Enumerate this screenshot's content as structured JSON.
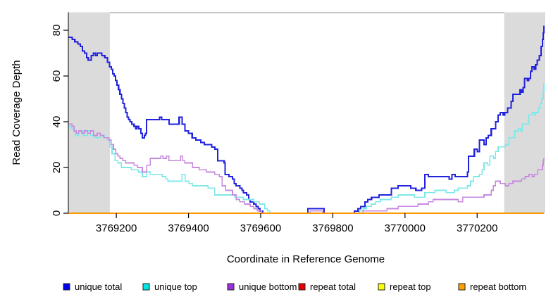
{
  "page": {
    "background": "#ffffff"
  },
  "chart_data": {
    "type": "line",
    "step": true,
    "title": "",
    "xlabel": "Coordinate in Reference Genome",
    "ylabel": "Read Coverage Depth",
    "xlim": [
      3769067,
      3770385
    ],
    "ylim": [
      0,
      87.7
    ],
    "xticks": [
      3769200,
      3769400,
      3769600,
      3769800,
      3770000,
      3770200
    ],
    "yticks": [
      0,
      20,
      40,
      60,
      80
    ],
    "grid": false,
    "legend_position": "bottom",
    "shaded_regions": [
      {
        "x0": 3769067,
        "x1": 3769182
      },
      {
        "x0": 3770275,
        "x1": 3770385
      }
    ],
    "colors": {
      "shade": "#dbdbdb",
      "plot_border": "#8c8c8c",
      "axis": "#000000",
      "text": "#000000",
      "background": "#ffffff"
    },
    "series": [
      {
        "name": "unique total",
        "line_color": "#2222dd",
        "swatch_color": "#0000ee",
        "width": 2.1,
        "points": [
          [
            3769067,
            77
          ],
          [
            3769078,
            76
          ],
          [
            3769085,
            75
          ],
          [
            3769093,
            74
          ],
          [
            3769100,
            73
          ],
          [
            3769106,
            71
          ],
          [
            3769112,
            70
          ],
          [
            3769118,
            68
          ],
          [
            3769122,
            67
          ],
          [
            3769130,
            69
          ],
          [
            3769136,
            70
          ],
          [
            3769142,
            69
          ],
          [
            3769147,
            70
          ],
          [
            3769160,
            69
          ],
          [
            3769168,
            68
          ],
          [
            3769175,
            66
          ],
          [
            3769181,
            64
          ],
          [
            3769186,
            63
          ],
          [
            3769190,
            61
          ],
          [
            3769194,
            60
          ],
          [
            3769198,
            58
          ],
          [
            3769202,
            56
          ],
          [
            3769206,
            54
          ],
          [
            3769210,
            52
          ],
          [
            3769214,
            50
          ],
          [
            3769218,
            48
          ],
          [
            3769222,
            46
          ],
          [
            3769226,
            44
          ],
          [
            3769230,
            42
          ],
          [
            3769234,
            41
          ],
          [
            3769238,
            40
          ],
          [
            3769243,
            39
          ],
          [
            3769249,
            38
          ],
          [
            3769253,
            37
          ],
          [
            3769257,
            38
          ],
          [
            3769262,
            37
          ],
          [
            3769268,
            35
          ],
          [
            3769272,
            33
          ],
          [
            3769278,
            34
          ],
          [
            3769281,
            35
          ],
          [
            3769284,
            41
          ],
          [
            3769320,
            42
          ],
          [
            3769326,
            41
          ],
          [
            3769346,
            39
          ],
          [
            3769374,
            42
          ],
          [
            3769382,
            39
          ],
          [
            3769390,
            36
          ],
          [
            3769400,
            35
          ],
          [
            3769410,
            33
          ],
          [
            3769420,
            32
          ],
          [
            3769434,
            31
          ],
          [
            3769444,
            30
          ],
          [
            3769464,
            29
          ],
          [
            3769473,
            28
          ],
          [
            3769481,
            23
          ],
          [
            3769499,
            22
          ],
          [
            3769501,
            17
          ],
          [
            3769512,
            16
          ],
          [
            3769522,
            15
          ],
          [
            3769527,
            13
          ],
          [
            3769532,
            12
          ],
          [
            3769542,
            11
          ],
          [
            3769548,
            10
          ],
          [
            3769552,
            9
          ],
          [
            3769561,
            8
          ],
          [
            3769567,
            6
          ],
          [
            3769571,
            5
          ],
          [
            3769581,
            4
          ],
          [
            3769587,
            3
          ],
          [
            3769593,
            2
          ],
          [
            3769598,
            1
          ],
          [
            3769606,
            0
          ],
          [
            3769731,
            2
          ],
          [
            3769776,
            0
          ],
          [
            3769860,
            1
          ],
          [
            3769870,
            2
          ],
          [
            3769877,
            3
          ],
          [
            3769889,
            5
          ],
          [
            3769897,
            6
          ],
          [
            3769907,
            7
          ],
          [
            3769928,
            8
          ],
          [
            3769962,
            11
          ],
          [
            3769981,
            12
          ],
          [
            3770016,
            11
          ],
          [
            3770030,
            10
          ],
          [
            3770046,
            11
          ],
          [
            3770055,
            17
          ],
          [
            3770065,
            16
          ],
          [
            3770122,
            15
          ],
          [
            3770130,
            17
          ],
          [
            3770139,
            16
          ],
          [
            3770173,
            18
          ],
          [
            3770176,
            25
          ],
          [
            3770192,
            28
          ],
          [
            3770200,
            27
          ],
          [
            3770206,
            32
          ],
          [
            3770219,
            30
          ],
          [
            3770225,
            33
          ],
          [
            3770231,
            34
          ],
          [
            3770239,
            37
          ],
          [
            3770251,
            40
          ],
          [
            3770258,
            43
          ],
          [
            3770264,
            44
          ],
          [
            3770272,
            43
          ],
          [
            3770276,
            44
          ],
          [
            3770284,
            46
          ],
          [
            3770294,
            49
          ],
          [
            3770299,
            52
          ],
          [
            3770319,
            54
          ],
          [
            3770323,
            53
          ],
          [
            3770327,
            55
          ],
          [
            3770331,
            59
          ],
          [
            3770339,
            58
          ],
          [
            3770343,
            59
          ],
          [
            3770348,
            62
          ],
          [
            3770352,
            64
          ],
          [
            3770358,
            63
          ],
          [
            3770362,
            65
          ],
          [
            3770366,
            67
          ],
          [
            3770372,
            69
          ],
          [
            3770377,
            73
          ],
          [
            3770381,
            76
          ],
          [
            3770383,
            79
          ],
          [
            3770385,
            82
          ]
        ]
      },
      {
        "name": "unique top",
        "line_color": "#7de8e8",
        "swatch_color": "#00e5e5",
        "width": 1.6,
        "points": [
          [
            3769067,
            38
          ],
          [
            3769075,
            37
          ],
          [
            3769081,
            36
          ],
          [
            3769087,
            34
          ],
          [
            3769096,
            36
          ],
          [
            3769108,
            34
          ],
          [
            3769120,
            36
          ],
          [
            3769128,
            34
          ],
          [
            3769141,
            33
          ],
          [
            3769155,
            34
          ],
          [
            3769167,
            33
          ],
          [
            3769176,
            32
          ],
          [
            3769182,
            29
          ],
          [
            3769188,
            26
          ],
          [
            3769196,
            23
          ],
          [
            3769204,
            22
          ],
          [
            3769214,
            20
          ],
          [
            3769241,
            19
          ],
          [
            3769261,
            18
          ],
          [
            3769272,
            16
          ],
          [
            3769284,
            18
          ],
          [
            3769294,
            17
          ],
          [
            3769327,
            16
          ],
          [
            3769337,
            15
          ],
          [
            3769343,
            14
          ],
          [
            3769382,
            17
          ],
          [
            3769391,
            14
          ],
          [
            3769401,
            13
          ],
          [
            3769411,
            12
          ],
          [
            3769454,
            11
          ],
          [
            3769473,
            8
          ],
          [
            3769528,
            7
          ],
          [
            3769552,
            6
          ],
          [
            3769581,
            5
          ],
          [
            3769597,
            4
          ],
          [
            3769611,
            2
          ],
          [
            3769619,
            1
          ],
          [
            3769626,
            0
          ],
          [
            3769874,
            1
          ],
          [
            3769884,
            2
          ],
          [
            3769893,
            3
          ],
          [
            3769907,
            4
          ],
          [
            3769919,
            5
          ],
          [
            3769932,
            6
          ],
          [
            3769962,
            7
          ],
          [
            3769981,
            8
          ],
          [
            3770026,
            7
          ],
          [
            3770055,
            9
          ],
          [
            3770083,
            10
          ],
          [
            3770114,
            9
          ],
          [
            3770137,
            10
          ],
          [
            3770147,
            11
          ],
          [
            3770173,
            12
          ],
          [
            3770182,
            14
          ],
          [
            3770190,
            16
          ],
          [
            3770206,
            17
          ],
          [
            3770214,
            19
          ],
          [
            3770219,
            22
          ],
          [
            3770229,
            21
          ],
          [
            3770235,
            25
          ],
          [
            3770245,
            24
          ],
          [
            3770251,
            27
          ],
          [
            3770258,
            29
          ],
          [
            3770278,
            30
          ],
          [
            3770288,
            33
          ],
          [
            3770304,
            36
          ],
          [
            3770315,
            37
          ],
          [
            3770321,
            36
          ],
          [
            3770325,
            39
          ],
          [
            3770343,
            43
          ],
          [
            3770352,
            44
          ],
          [
            3770358,
            43
          ],
          [
            3770362,
            44
          ],
          [
            3770370,
            46
          ],
          [
            3770375,
            48
          ],
          [
            3770379,
            50
          ],
          [
            3770383,
            53
          ],
          [
            3770385,
            57
          ]
        ]
      },
      {
        "name": "unique bottom",
        "line_color": "#c78ae0",
        "swatch_color": "#9b30d9",
        "width": 1.6,
        "points": [
          [
            3769067,
            39
          ],
          [
            3769077,
            38
          ],
          [
            3769083,
            36
          ],
          [
            3769089,
            35
          ],
          [
            3769096,
            36
          ],
          [
            3769104,
            35
          ],
          [
            3769112,
            36
          ],
          [
            3769120,
            35
          ],
          [
            3769128,
            36
          ],
          [
            3769137,
            34
          ],
          [
            3769147,
            35
          ],
          [
            3769155,
            34
          ],
          [
            3769165,
            33
          ],
          [
            3769180,
            32
          ],
          [
            3769186,
            30
          ],
          [
            3769192,
            28
          ],
          [
            3769198,
            26
          ],
          [
            3769204,
            25
          ],
          [
            3769210,
            24
          ],
          [
            3769218,
            23
          ],
          [
            3769226,
            22
          ],
          [
            3769249,
            21
          ],
          [
            3769259,
            20
          ],
          [
            3769272,
            18
          ],
          [
            3769284,
            21
          ],
          [
            3769294,
            24
          ],
          [
            3769323,
            25
          ],
          [
            3769329,
            24
          ],
          [
            3769339,
            25
          ],
          [
            3769346,
            23
          ],
          [
            3769378,
            25
          ],
          [
            3769384,
            23
          ],
          [
            3769390,
            22
          ],
          [
            3769411,
            20
          ],
          [
            3769430,
            19
          ],
          [
            3769450,
            18
          ],
          [
            3769473,
            17
          ],
          [
            3769485,
            16
          ],
          [
            3769493,
            12
          ],
          [
            3769503,
            10
          ],
          [
            3769522,
            8
          ],
          [
            3769532,
            6
          ],
          [
            3769542,
            5
          ],
          [
            3769556,
            4
          ],
          [
            3769571,
            3
          ],
          [
            3769581,
            2
          ],
          [
            3769591,
            1
          ],
          [
            3769602,
            0
          ],
          [
            3769737,
            1
          ],
          [
            3769772,
            0
          ],
          [
            3769884,
            1
          ],
          [
            3769950,
            2
          ],
          [
            3769981,
            3
          ],
          [
            3770036,
            4
          ],
          [
            3770065,
            5
          ],
          [
            3770078,
            6
          ],
          [
            3770147,
            5
          ],
          [
            3770160,
            7
          ],
          [
            3770219,
            8
          ],
          [
            3770239,
            10
          ],
          [
            3770245,
            12
          ],
          [
            3770251,
            14
          ],
          [
            3770264,
            13
          ],
          [
            3770278,
            12
          ],
          [
            3770288,
            13
          ],
          [
            3770299,
            14
          ],
          [
            3770323,
            15
          ],
          [
            3770333,
            16
          ],
          [
            3770343,
            17
          ],
          [
            3770352,
            16
          ],
          [
            3770358,
            17
          ],
          [
            3770368,
            19
          ],
          [
            3770381,
            21
          ],
          [
            3770383,
            23
          ],
          [
            3770385,
            24
          ]
        ]
      },
      {
        "name": "repeat total",
        "line_color": "#dd0000",
        "swatch_color": "#e60000",
        "width": 1.6,
        "points": [
          [
            3769067,
            0
          ],
          [
            3770385,
            0
          ]
        ]
      },
      {
        "name": "repeat top",
        "line_color": "#ffff00",
        "swatch_color": "#ffff00",
        "width": 1.6,
        "points": [
          [
            3769067,
            0
          ],
          [
            3770385,
            0
          ]
        ]
      },
      {
        "name": "repeat bottom",
        "line_color": "#ff9800",
        "swatch_color": "#ffa200",
        "width": 1.8,
        "points": [
          [
            3769067,
            0
          ],
          [
            3770385,
            0
          ]
        ]
      }
    ]
  },
  "legend": {
    "items": [
      {
        "label": "unique total",
        "color": "#0000ee"
      },
      {
        "label": "unique top",
        "color": "#00e5e5"
      },
      {
        "label": "unique bottom",
        "color": "#9b30d9"
      },
      {
        "label": "repeat total",
        "color": "#e60000"
      },
      {
        "label": "repeat top",
        "color": "#ffff00"
      },
      {
        "label": "repeat bottom",
        "color": "#ffa200"
      }
    ]
  }
}
